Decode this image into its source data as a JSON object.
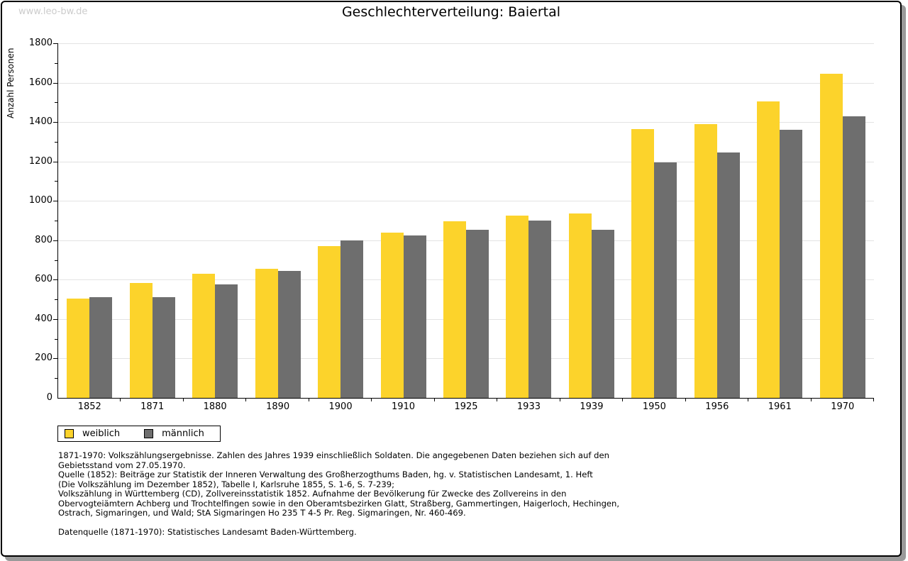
{
  "watermark": "www.leo-bw.de",
  "title": "Geschlechterverteilung: Baiertal",
  "chart_data": {
    "type": "bar",
    "title": "Geschlechterverteilung: Baiertal",
    "xlabel": "",
    "ylabel": "Anzahl Personen",
    "ylim": [
      0,
      1800
    ],
    "ytick_label_step": 200,
    "ytick_minor_step": 100,
    "grid": true,
    "legend_position": "bottom-left",
    "categories": [
      "1852",
      "1871",
      "1880",
      "1890",
      "1900",
      "1910",
      "1925",
      "1933",
      "1939",
      "1950",
      "1956",
      "1961",
      "1970"
    ],
    "series": [
      {
        "name": "weiblich",
        "color": "#fcd32b",
        "values": [
          505,
          585,
          630,
          655,
          770,
          840,
          895,
          925,
          935,
          1365,
          1390,
          1505,
          1645
        ]
      },
      {
        "name": "männlich",
        "color": "#6e6e6e",
        "values": [
          512,
          510,
          575,
          645,
          800,
          825,
          855,
          900,
          855,
          1195,
          1245,
          1360,
          1430
        ]
      }
    ]
  },
  "legend": {
    "items": [
      {
        "label": "weiblich",
        "color": "#fcd32b"
      },
      {
        "label": "männlich",
        "color": "#6e6e6e"
      }
    ]
  },
  "footnotes": [
    "1871-1970: Volkszählungsergebnisse. Zahlen des Jahres 1939 einschließlich Soldaten. Die angegebenen Daten beziehen sich auf den",
    "Gebietsstand vom 27.05.1970.",
    "Quelle (1852): Beiträge zur Statistik der Inneren Verwaltung des Großherzogthums Baden, hg. v. Statistischen Landesamt, 1. Heft",
    "(Die Volkszählung im Dezember 1852), Tabelle I, Karlsruhe 1855, S. 1-6, S. 7-239;",
    "Volkszählung in Württemberg (CD), Zollvereinsstatistik 1852. Aufnahme der Bevölkerung für Zwecke des Zollvereins in den",
    "Obervogteiämtern Achberg und Trochtelfingen sowie in den Oberamtsbezirken Glatt, Straßberg, Gammertingen, Haigerloch, Hechingen,",
    "Ostrach, Sigmaringen, und Wald; StA Sigmaringen Ho 235 T 4-5 Pr. Reg. Sigmaringen, Nr. 460-469."
  ],
  "datasource": "Datenquelle (1871-1970): Statistisches Landesamt Baden-Württemberg."
}
